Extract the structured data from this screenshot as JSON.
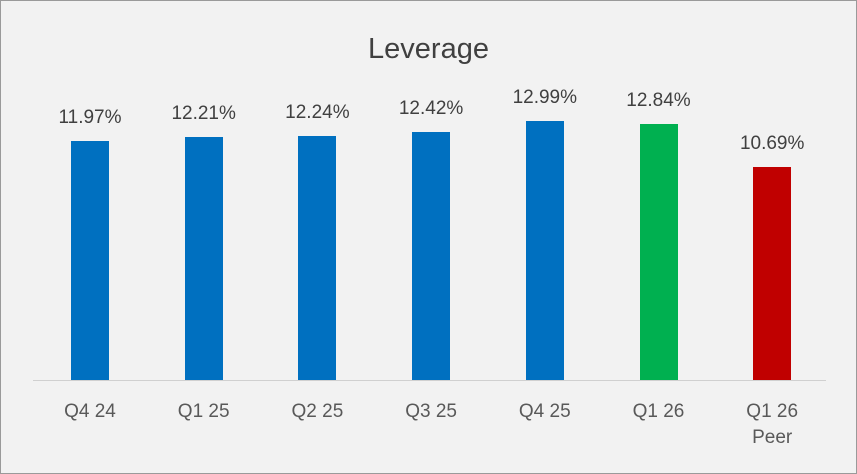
{
  "chart_data": {
    "type": "bar",
    "title": "Leverage",
    "categories": [
      "Q4 24",
      "Q1 25",
      "Q2 25",
      "Q3 25",
      "Q4 25",
      "Q1 26",
      "Q1 26 Peer"
    ],
    "values": [
      11.97,
      12.21,
      12.24,
      12.42,
      12.99,
      12.84,
      10.69
    ],
    "value_labels": [
      "11.97%",
      "12.21%",
      "12.24%",
      "12.42%",
      "12.99%",
      "12.84%",
      "10.69%"
    ],
    "colors": [
      "#0070c0",
      "#0070c0",
      "#0070c0",
      "#0070c0",
      "#0070c0",
      "#00b050",
      "#c00000"
    ]
  }
}
